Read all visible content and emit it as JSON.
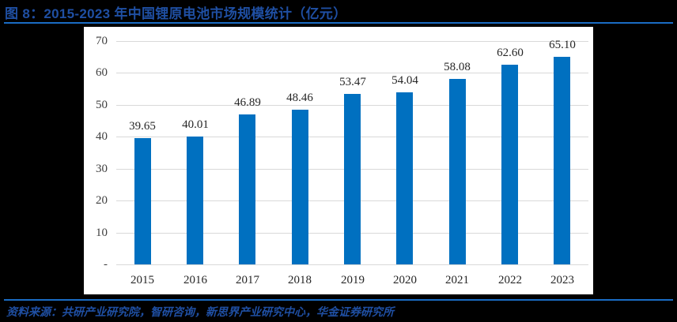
{
  "figure": {
    "title": "图 8：2015-2023 年中国锂原电池市场规模统计（亿元）",
    "source": "资料来源：共研产业研究院，智研咨询，新思界产业研究中心，华金证券研究所"
  },
  "colors": {
    "bar": "#0070c0",
    "title": "#1f4fa3",
    "rule": "#1a6cc4",
    "gridline": "#d9d9d9"
  },
  "chart_data": {
    "type": "bar",
    "title": "2015-2023 年中国锂原电池市场规模统计（亿元）",
    "xlabel": "",
    "ylabel": "",
    "unit": "亿元",
    "categories": [
      "2015",
      "2016",
      "2017",
      "2018",
      "2019",
      "2020",
      "2021",
      "2022",
      "2023"
    ],
    "values": [
      39.65,
      40.01,
      46.89,
      48.46,
      53.47,
      54.04,
      58.08,
      62.6,
      65.1
    ],
    "value_labels": [
      "39.65",
      "40.01",
      "46.89",
      "48.46",
      "53.47",
      "54.04",
      "58.08",
      "62.60",
      "65.10"
    ],
    "ylim": [
      0,
      70
    ],
    "yticks": [
      0,
      10,
      20,
      30,
      40,
      50,
      60,
      70
    ],
    "ytick_labels": [
      "-",
      "10",
      "20",
      "30",
      "40",
      "50",
      "60",
      "70"
    ],
    "grid": true,
    "legend": null
  }
}
